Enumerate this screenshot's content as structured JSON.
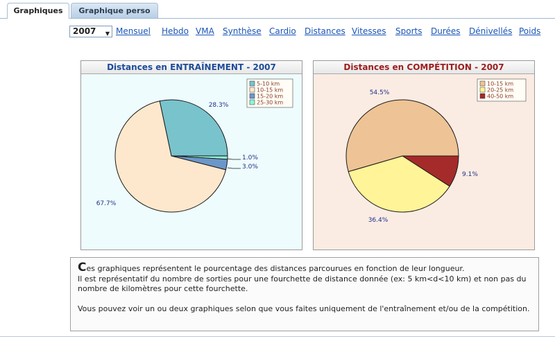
{
  "tabs": [
    {
      "label": "Graphiques",
      "active": true
    },
    {
      "label": "Graphique perso",
      "active": false
    }
  ],
  "nav": {
    "year": "2007",
    "links": [
      "Mensuel",
      "Hebdo",
      "VMA",
      "Synthèse",
      "Cardio",
      "Distances",
      "Vitesses",
      "Sports",
      "Durées",
      "Dénivellés",
      "Poids"
    ]
  },
  "charts": [
    {
      "title": "Distances en ENTRAÎNEMENT - 2007",
      "legend": [
        "5-10 km",
        "10-15 km",
        "15-20 km",
        "25-30 km"
      ],
      "colors": [
        "#79c3cd",
        "#fde8cd",
        "#6b97c9",
        "#8ff5d5"
      ],
      "values": [
        28.3,
        67.7,
        3.0,
        1.0
      ],
      "labels": [
        "28.3%",
        "67.7%",
        "3.0%",
        "1.0%"
      ]
    },
    {
      "title": "Distances en COMPÉTITION - 2007",
      "legend": [
        "10-15 km",
        "20-25 km",
        "40-50 km"
      ],
      "colors": [
        "#eec395",
        "#fff497",
        "#a52a2a"
      ],
      "values": [
        54.5,
        36.4,
        9.1
      ],
      "labels": [
        "54.5%",
        "36.4%",
        "9.1%"
      ]
    }
  ],
  "info": {
    "dropcap": "C",
    "line1": "es graphiques représentent le pourcentage des distances parcourues en fonction de leur longueur.",
    "line2": "Il est représentatif du nombre de sorties pour une fourchette de distance donnée (ex: 5 km<d<10 km) et non pas du nombre de kilomètres pour cette fourchette.",
    "line3": "Vous pouvez voir un ou deux graphiques selon que vous faites uniquement de l'entraînement et/ou de la compétition."
  }
}
